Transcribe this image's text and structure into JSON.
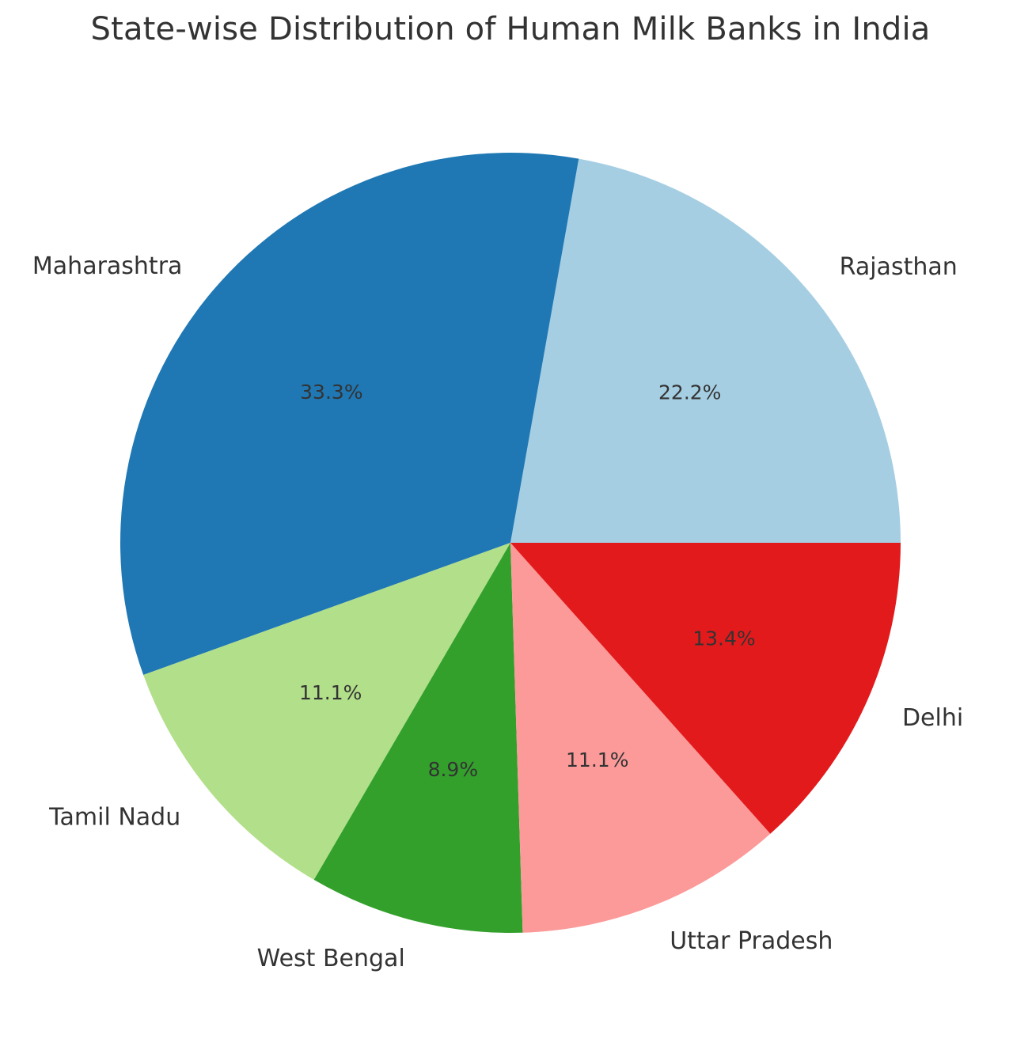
{
  "chart_data": {
    "type": "pie",
    "title": "State-wise Distribution of Human Milk Banks in India",
    "start_angle_deg": 0,
    "direction": "counterclockwise",
    "slices": [
      {
        "label": "Rajasthan",
        "value": 22.2,
        "pct_text": "22.2%",
        "color": "#a6cee3"
      },
      {
        "label": "Maharashtra",
        "value": 33.3,
        "pct_text": "33.3%",
        "color": "#1f78b4"
      },
      {
        "label": "Tamil Nadu",
        "value": 11.1,
        "pct_text": "11.1%",
        "color": "#b2df8a"
      },
      {
        "label": "West Bengal",
        "value": 8.9,
        "pct_text": "8.9%",
        "color": "#33a02c"
      },
      {
        "label": "Uttar Pradesh",
        "value": 11.1,
        "pct_text": "11.1%",
        "color": "#fb9a99"
      },
      {
        "label": "Delhi",
        "value": 13.4,
        "pct_text": "13.4%",
        "color": "#e31a1c"
      }
    ]
  }
}
